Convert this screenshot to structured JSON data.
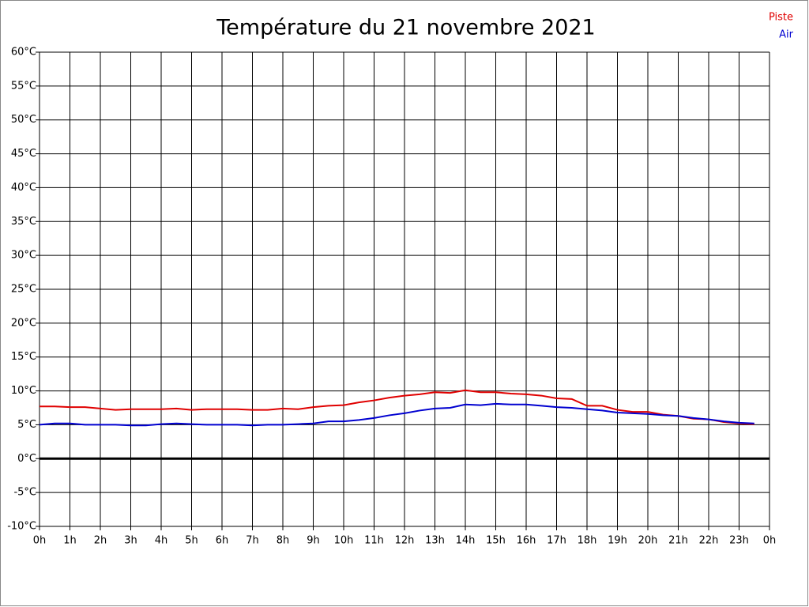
{
  "chart_data": {
    "type": "line",
    "title": "Température du 21 novembre 2021",
    "x": [
      0,
      0.5,
      1,
      1.5,
      2,
      2.5,
      3,
      3.5,
      4,
      4.5,
      5,
      5.5,
      6,
      6.5,
      7,
      7.5,
      8,
      8.5,
      9,
      9.5,
      10,
      10.5,
      11,
      11.5,
      12,
      12.5,
      13,
      13.5,
      14,
      14.5,
      15,
      15.5,
      16,
      16.5,
      17,
      17.5,
      18,
      18.5,
      19,
      19.5,
      20,
      20.5,
      21,
      21.5,
      22,
      22.5,
      23,
      23.5
    ],
    "series": [
      {
        "name": "Piste",
        "color": "#e00000",
        "values": [
          7.7,
          7.7,
          7.6,
          7.6,
          7.4,
          7.2,
          7.3,
          7.3,
          7.3,
          7.4,
          7.2,
          7.3,
          7.3,
          7.3,
          7.2,
          7.2,
          7.4,
          7.3,
          7.6,
          7.8,
          7.9,
          8.3,
          8.6,
          9.0,
          9.3,
          9.5,
          9.8,
          9.7,
          10.1,
          9.8,
          9.8,
          9.6,
          9.5,
          9.3,
          8.9,
          8.8,
          7.8,
          7.8,
          7.2,
          6.9,
          6.9,
          6.5,
          6.3,
          5.9,
          5.8,
          5.4,
          5.2,
          5.1
        ]
      },
      {
        "name": "Air",
        "color": "#0000d0",
        "values": [
          5.0,
          5.2,
          5.2,
          5.0,
          5.0,
          5.0,
          4.9,
          4.9,
          5.1,
          5.2,
          5.1,
          5.0,
          5.0,
          5.0,
          4.9,
          5.0,
          5.0,
          5.1,
          5.2,
          5.5,
          5.5,
          5.7,
          6.0,
          6.4,
          6.7,
          7.1,
          7.4,
          7.5,
          8.0,
          7.9,
          8.1,
          8.0,
          8.0,
          7.8,
          7.6,
          7.5,
          7.3,
          7.1,
          6.8,
          6.7,
          6.6,
          6.4,
          6.3,
          6.0,
          5.8,
          5.5,
          5.3,
          5.2
        ]
      }
    ],
    "xlim": [
      0,
      24
    ],
    "xticks": [
      {
        "value": 0,
        "label": "0h"
      },
      {
        "value": 1,
        "label": "1h"
      },
      {
        "value": 2,
        "label": "2h"
      },
      {
        "value": 3,
        "label": "3h"
      },
      {
        "value": 4,
        "label": "4h"
      },
      {
        "value": 5,
        "label": "5h"
      },
      {
        "value": 6,
        "label": "6h"
      },
      {
        "value": 7,
        "label": "7h"
      },
      {
        "value": 8,
        "label": "8h"
      },
      {
        "value": 9,
        "label": "9h"
      },
      {
        "value": 10,
        "label": "10h"
      },
      {
        "value": 11,
        "label": "11h"
      },
      {
        "value": 12,
        "label": "12h"
      },
      {
        "value": 13,
        "label": "13h"
      },
      {
        "value": 14,
        "label": "14h"
      },
      {
        "value": 15,
        "label": "15h"
      },
      {
        "value": 16,
        "label": "16h"
      },
      {
        "value": 17,
        "label": "17h"
      },
      {
        "value": 18,
        "label": "18h"
      },
      {
        "value": 19,
        "label": "19h"
      },
      {
        "value": 20,
        "label": "20h"
      },
      {
        "value": 21,
        "label": "21h"
      },
      {
        "value": 22,
        "label": "22h"
      },
      {
        "value": 23,
        "label": "23h"
      },
      {
        "value": 24,
        "label": "0h"
      }
    ],
    "ylim": [
      -10,
      60
    ],
    "yticks": [
      {
        "value": -10,
        "label": "-10°C"
      },
      {
        "value": -5,
        "label": "-5°C"
      },
      {
        "value": 0,
        "label": "0°C"
      },
      {
        "value": 5,
        "label": "5°C"
      },
      {
        "value": 10,
        "label": "10°C"
      },
      {
        "value": 15,
        "label": "15°C"
      },
      {
        "value": 20,
        "label": "20°C"
      },
      {
        "value": 25,
        "label": "25°C"
      },
      {
        "value": 30,
        "label": "30°C"
      },
      {
        "value": 35,
        "label": "35°C"
      },
      {
        "value": 40,
        "label": "40°C"
      },
      {
        "value": 45,
        "label": "45°C"
      },
      {
        "value": 50,
        "label": "50°C"
      },
      {
        "value": 55,
        "label": "55°C"
      },
      {
        "value": 60,
        "label": "60°C"
      }
    ],
    "grid": true,
    "zero_line": true,
    "legend": "upper right"
  }
}
